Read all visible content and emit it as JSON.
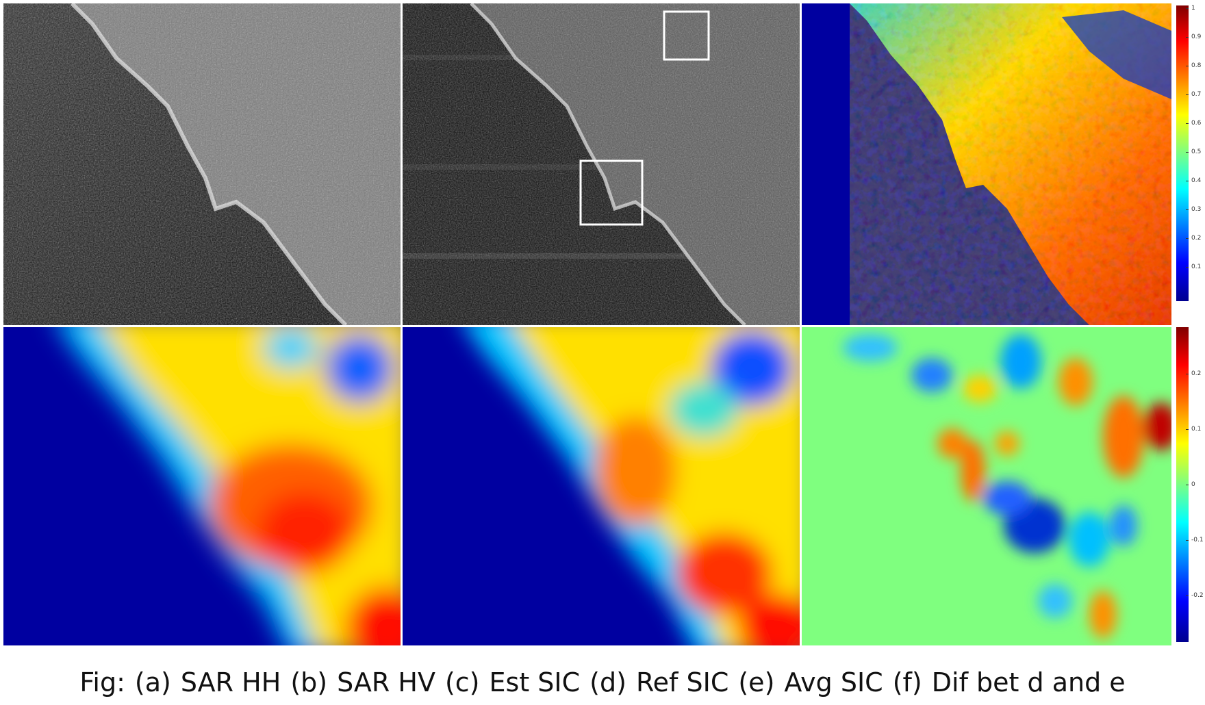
{
  "figure": {
    "caption": {
      "prefix": "Fig:",
      "items": [
        {
          "tag": "(a)",
          "label": "SAR HH"
        },
        {
          "tag": "(b)",
          "label": "SAR HV"
        },
        {
          "tag": "(c)",
          "label": "Est SIC"
        },
        {
          "tag": "(d)",
          "label": "Ref SIC"
        },
        {
          "tag": "(e)",
          "label": "Avg SIC"
        },
        {
          "tag": "(f)",
          "label": "Dif bet d and e"
        }
      ]
    },
    "colorbar_top": {
      "colormap": "jet",
      "ticks": [
        "1",
        "0.9",
        "0.8",
        "0.7",
        "0.6",
        "0.5",
        "0.4",
        "0.3",
        "0.2",
        "0.1"
      ]
    },
    "colorbar_bottom": {
      "colormap": "jet",
      "ticks": [
        "0.2",
        "0.1",
        "0",
        "-0.1",
        "-0.2"
      ]
    },
    "colors": {
      "jet_low": "#00008f",
      "jet_mid": "#7fff7f",
      "jet_high": "#800000",
      "sar_dark": "#0a0a0a",
      "sar_light": "#cfcfcf"
    }
  }
}
